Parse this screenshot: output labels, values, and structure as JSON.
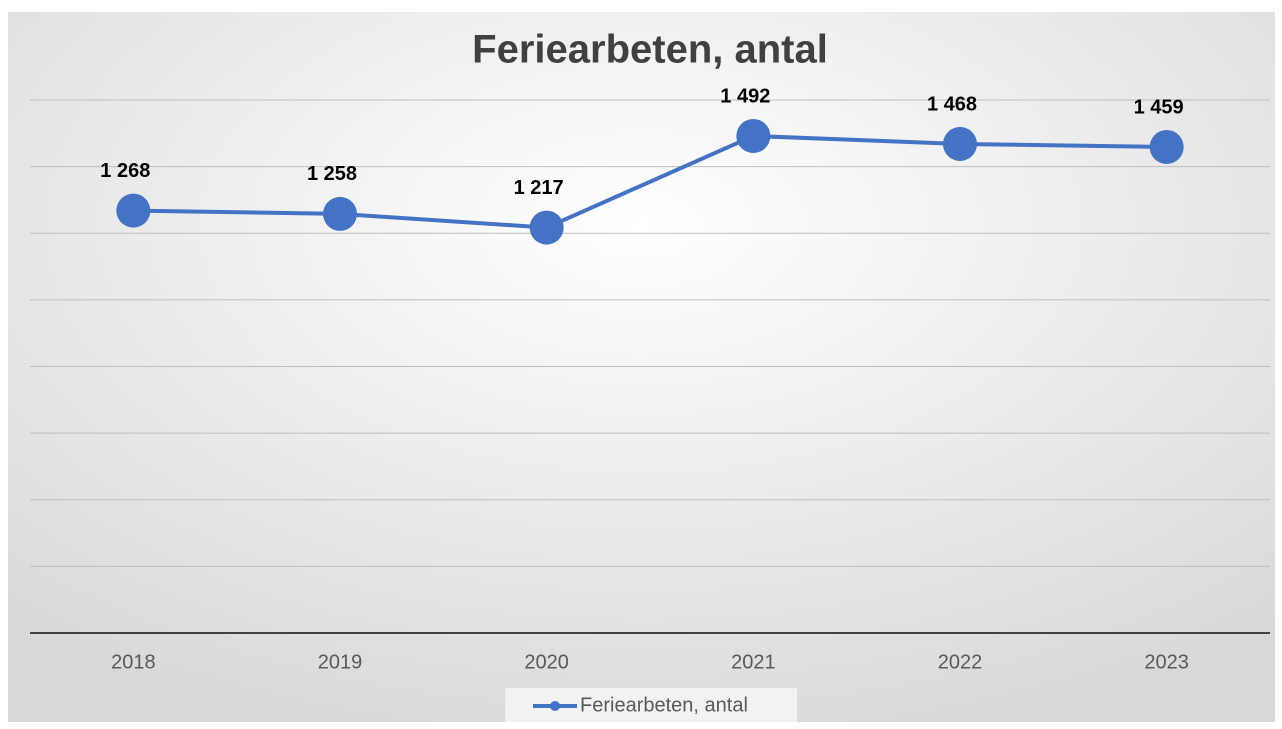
{
  "chart_data": {
    "type": "line",
    "title": "Feriearbeten, antal",
    "categories": [
      "2018",
      "2019",
      "2020",
      "2021",
      "2022",
      "2023"
    ],
    "series": [
      {
        "name": "Feriearbeten, antal",
        "color": "#4472c4",
        "values": [
          1268,
          1258,
          1217,
          1492,
          1468,
          1459
        ],
        "value_labels": [
          "1 268",
          "1 258",
          "1 217",
          "1 492",
          "1 468",
          "1 459"
        ]
      }
    ],
    "ylim": [
      0,
      1600
    ],
    "yticks": [
      0,
      200,
      400,
      600,
      800,
      1000,
      1200,
      1400,
      1600
    ],
    "grid": true,
    "legend": "bottom"
  }
}
